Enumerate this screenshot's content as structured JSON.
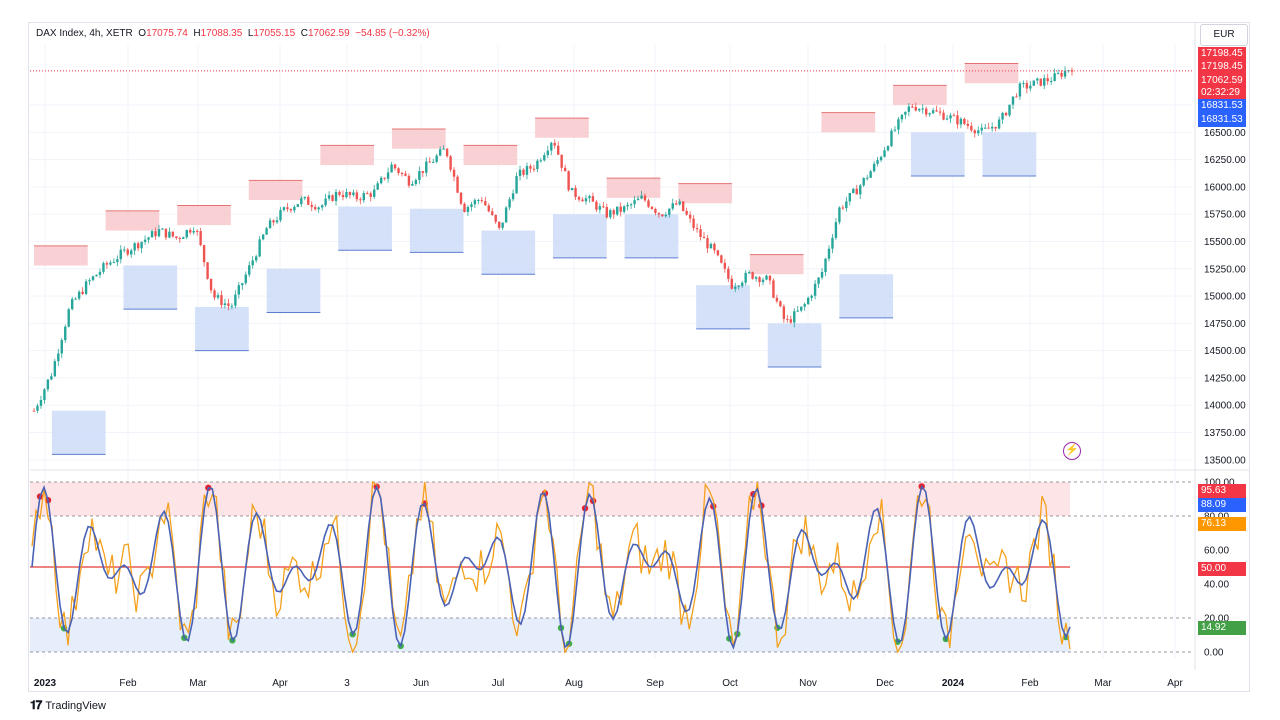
{
  "header": {
    "symbol": "DAX Index, 4h, XETR",
    "open_label": "O",
    "open": "17075.74",
    "high_label": "H",
    "high": "17088.35",
    "low_label": "L",
    "low": "17055.15",
    "close_label": "C",
    "close": "17062.59",
    "change": "−54.85 (−0.32%)"
  },
  "currency": "EUR",
  "price_tags": {
    "high": "17198.45",
    "high2": "17198.45",
    "last": "17062.59",
    "countdown": "02:32:29",
    "low": "16831.53",
    "low2": "16831.53"
  },
  "osc_tags": {
    "upper_fill": "95.63",
    "k_value": "88.09",
    "d_value": "76.13",
    "mid": "50.00",
    "low": "14.92"
  },
  "colors": {
    "up": "#26a69a",
    "down": "#ef5350",
    "resistance": "#f7c6c9",
    "support": "#c9d9f7",
    "k_line": "#4a62b5",
    "d_line": "#f4a11d",
    "overbought_dot": "#e5202f",
    "oversold_dot": "#3fae49",
    "mid_line": "#e53935",
    "last_tag": "#f23645",
    "low_tag": "#2962ff",
    "d_tag": "#ff9800",
    "os_tag": "#43a047"
  },
  "footer": {
    "brand": "TradingView"
  },
  "chart_data": [
    {
      "type": "line",
      "subtype": "candlestick-4h-approx",
      "title": "DAX Index, 4h, XETR",
      "y_axis": {
        "ticks": [
          13500,
          13750,
          14000,
          14250,
          14500,
          14750,
          15000,
          15250,
          15500,
          15750,
          16000,
          16250,
          16500,
          16750
        ],
        "ylim": [
          13480,
          17300
        ]
      },
      "x_axis": {
        "ticks": [
          "2023",
          "Feb",
          "Mar",
          "Apr",
          "3",
          "Jun",
          "Jul",
          "Aug",
          "Sep",
          "Oct",
          "Nov",
          "Dec",
          "2024",
          "Feb",
          "Mar",
          "Apr"
        ]
      },
      "x": [
        "2023-01-02",
        "2023-01-09",
        "2023-01-16",
        "2023-01-23",
        "2023-01-30",
        "2023-02-06",
        "2023-02-13",
        "2023-02-20",
        "2023-02-27",
        "2023-03-06",
        "2023-03-13",
        "2023-03-20",
        "2023-03-27",
        "2023-04-03",
        "2023-04-10",
        "2023-04-17",
        "2023-04-24",
        "2023-05-01",
        "2023-05-08",
        "2023-05-15",
        "2023-05-22",
        "2023-05-29",
        "2023-06-05",
        "2023-06-12",
        "2023-06-19",
        "2023-06-26",
        "2023-07-03",
        "2023-07-10",
        "2023-07-17",
        "2023-07-24",
        "2023-07-31",
        "2023-08-07",
        "2023-08-14",
        "2023-08-21",
        "2023-08-28",
        "2023-09-04",
        "2023-09-11",
        "2023-09-18",
        "2023-09-25",
        "2023-10-02",
        "2023-10-09",
        "2023-10-16",
        "2023-10-23",
        "2023-10-30",
        "2023-11-06",
        "2023-11-13",
        "2023-11-20",
        "2023-11-27",
        "2023-12-04",
        "2023-12-11",
        "2023-12-18",
        "2023-12-25",
        "2024-01-01",
        "2024-01-08",
        "2024-01-15",
        "2024-01-22",
        "2024-01-29",
        "2024-02-05",
        "2024-02-12"
      ],
      "series": [
        {
          "name": "DAX Index",
          "values": [
            13950,
            14300,
            14900,
            15120,
            15280,
            15400,
            15500,
            15600,
            15530,
            15650,
            15000,
            14900,
            15250,
            15620,
            15790,
            15880,
            15820,
            15950,
            15900,
            15950,
            16200,
            16050,
            16200,
            16350,
            15800,
            15900,
            15600,
            16100,
            16200,
            16450,
            15950,
            15880,
            15750,
            15800,
            15900,
            15750,
            15850,
            15600,
            15400,
            15100,
            15200,
            15150,
            14750,
            14900,
            15200,
            15800,
            15980,
            16200,
            16500,
            16750,
            16700,
            16650,
            16580,
            16500,
            16600,
            16900,
            16950,
            17000,
            17100
          ]
        }
      ]
    },
    {
      "type": "line",
      "subtype": "oscillator",
      "y_axis": {
        "ticks": [
          0,
          20,
          40,
          60,
          80,
          100
        ],
        "tick_labels": [
          "0.00",
          "20.00",
          "40.00",
          "60.00",
          "80.00",
          "100.00"
        ],
        "ylim": [
          0,
          100
        ]
      },
      "levels": [
        80,
        50,
        20
      ]
    }
  ]
}
